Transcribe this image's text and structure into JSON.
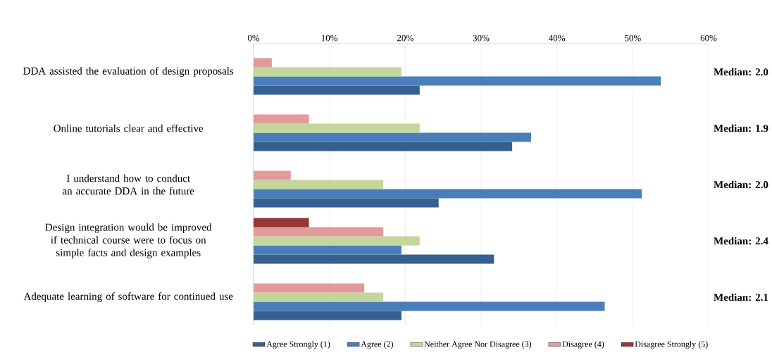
{
  "chart_data": {
    "type": "bar",
    "orientation": "horizontal",
    "categories": [
      "DDA assisted the evaluation of design proposals",
      "Online tutorials clear and effective",
      "I understand how to conduct an accurate DDA in the future",
      "Design integration would be improved if technical course were to focus on simple facts and design examples",
      "Adequate learning of software for continued use"
    ],
    "series": [
      {
        "name": "Agree Strongly (1)",
        "color": "#36608f",
        "values": [
          21.9,
          34.1,
          24.4,
          31.7,
          19.5
        ]
      },
      {
        "name": "Agree (2)",
        "color": "#4a7ebb",
        "values": [
          53.7,
          36.6,
          51.2,
          19.5,
          46.3
        ]
      },
      {
        "name": "Neither Agree Nor Disagree (3)",
        "color": "#c3d69b",
        "values": [
          19.5,
          21.9,
          17.1,
          21.9,
          17.1
        ]
      },
      {
        "name": "Disagree (4)",
        "color": "#e39a9a",
        "values": [
          2.4,
          7.3,
          4.9,
          17.1,
          14.6
        ]
      },
      {
        "name": "Disagree Strongly (5)",
        "color": "#953735",
        "values": [
          0,
          0,
          0,
          7.3,
          0
        ]
      }
    ],
    "xlim": [
      0,
      60
    ],
    "xticks": [
      {
        "value": 0,
        "label": "0%"
      },
      {
        "value": 10,
        "label": "10%"
      },
      {
        "value": 20,
        "label": "20%"
      },
      {
        "value": 30,
        "label": "30%"
      },
      {
        "value": 40,
        "label": "40%"
      },
      {
        "value": 50,
        "label": "50%"
      },
      {
        "value": 60,
        "label": "60%"
      }
    ],
    "grid": "x",
    "legend": "bottom",
    "annotations": [
      "**Median:  2.0**",
      "**Median:  1.9**",
      "**Median:  2.0**",
      "**Median:  2.4**",
      "**Median:  2.1**"
    ]
  }
}
